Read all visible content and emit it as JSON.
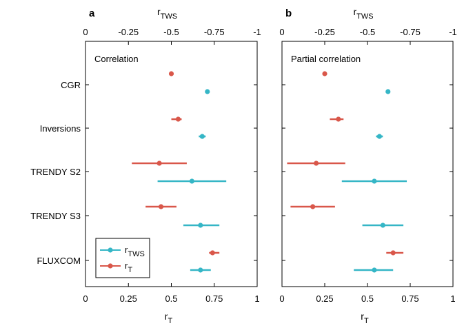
{
  "figure": {
    "colors": {
      "r_TWS": "#35B6C6",
      "r_T": "#D9574A"
    }
  },
  "chart_data": [
    {
      "type": "scatter",
      "panel_letter": "a",
      "title": "Correlation",
      "xlabel": "r_T",
      "xlabel_main": "r",
      "xlabel_sub": "T",
      "top_xlabel": "r_TWS",
      "top_xlabel_main": "r",
      "top_xlabel_sub": "TWS",
      "xlim": [
        0,
        1
      ],
      "xticks": [
        0,
        0.25,
        0.5,
        0.75,
        1
      ],
      "xtick_labels": [
        "0",
        "0.25",
        "0.5",
        "0.75",
        "1"
      ],
      "top_xlim": [
        0,
        -1
      ],
      "top_xtick_labels": [
        "0",
        "-0.25",
        "-0.5",
        "-0.75",
        "-1"
      ],
      "categories": [
        "CGR",
        "Inversions",
        "TRENDY S2",
        "TRENDY S3",
        "FLUXCOM"
      ],
      "series": [
        {
          "name": "r_T",
          "name_main": "r",
          "name_sub": "T",
          "color": "#D9574A",
          "points": [
            {
              "category": "CGR",
              "value": 0.5,
              "low": 0.5,
              "high": 0.5
            },
            {
              "category": "Inversions",
              "value": 0.54,
              "low": 0.5,
              "high": 0.56
            },
            {
              "category": "TRENDY S2",
              "value": 0.43,
              "low": 0.27,
              "high": 0.59
            },
            {
              "category": "TRENDY S3",
              "value": 0.44,
              "low": 0.35,
              "high": 0.53
            },
            {
              "category": "FLUXCOM",
              "value": 0.74,
              "low": 0.72,
              "high": 0.78
            }
          ]
        },
        {
          "name": "r_TWS",
          "name_main": "r",
          "name_sub": "TWS",
          "color": "#35B6C6",
          "points": [
            {
              "category": "CGR",
              "value": 0.71,
              "low": 0.71,
              "high": 0.71
            },
            {
              "category": "Inversions",
              "value": 0.68,
              "low": 0.66,
              "high": 0.7
            },
            {
              "category": "TRENDY S2",
              "value": 0.62,
              "low": 0.42,
              "high": 0.82
            },
            {
              "category": "TRENDY S3",
              "value": 0.67,
              "low": 0.57,
              "high": 0.78
            },
            {
              "category": "FLUXCOM",
              "value": 0.67,
              "low": 0.61,
              "high": 0.73
            }
          ]
        }
      ],
      "legend": {
        "placement": "bottom-left"
      },
      "grid": false
    },
    {
      "type": "scatter",
      "panel_letter": "b",
      "title": "Partial correlation",
      "xlabel": "r_T",
      "xlabel_main": "r",
      "xlabel_sub": "T",
      "top_xlabel": "r_TWS",
      "top_xlabel_main": "r",
      "top_xlabel_sub": "TWS",
      "xlim": [
        0,
        1
      ],
      "xticks": [
        0,
        0.25,
        0.5,
        0.75,
        1
      ],
      "xtick_labels": [
        "0",
        "0.25",
        "0.5",
        "0.75",
        "1"
      ],
      "top_xlim": [
        0,
        -1
      ],
      "top_xtick_labels": [
        "0",
        "-0.25",
        "-0.5",
        "-0.75",
        "-1"
      ],
      "categories": [
        "CGR",
        "Inversions",
        "TRENDY S2",
        "TRENDY S3",
        "FLUXCOM"
      ],
      "series": [
        {
          "name": "r_T",
          "color": "#D9574A",
          "points": [
            {
              "category": "CGR",
              "value": 0.25,
              "low": 0.25,
              "high": 0.25
            },
            {
              "category": "Inversions",
              "value": 0.33,
              "low": 0.28,
              "high": 0.36
            },
            {
              "category": "TRENDY S2",
              "value": 0.2,
              "low": 0.03,
              "high": 0.37
            },
            {
              "category": "TRENDY S3",
              "value": 0.18,
              "low": 0.05,
              "high": 0.31
            },
            {
              "category": "FLUXCOM",
              "value": 0.65,
              "low": 0.61,
              "high": 0.71
            }
          ]
        },
        {
          "name": "r_TWS",
          "color": "#35B6C6",
          "points": [
            {
              "category": "CGR",
              "value": 0.62,
              "low": 0.62,
              "high": 0.62
            },
            {
              "category": "Inversions",
              "value": 0.57,
              "low": 0.55,
              "high": 0.59
            },
            {
              "category": "TRENDY S2",
              "value": 0.54,
              "low": 0.35,
              "high": 0.73
            },
            {
              "category": "TRENDY S3",
              "value": 0.59,
              "low": 0.47,
              "high": 0.71
            },
            {
              "category": "FLUXCOM",
              "value": 0.54,
              "low": 0.42,
              "high": 0.65
            }
          ]
        }
      ],
      "grid": false
    }
  ]
}
